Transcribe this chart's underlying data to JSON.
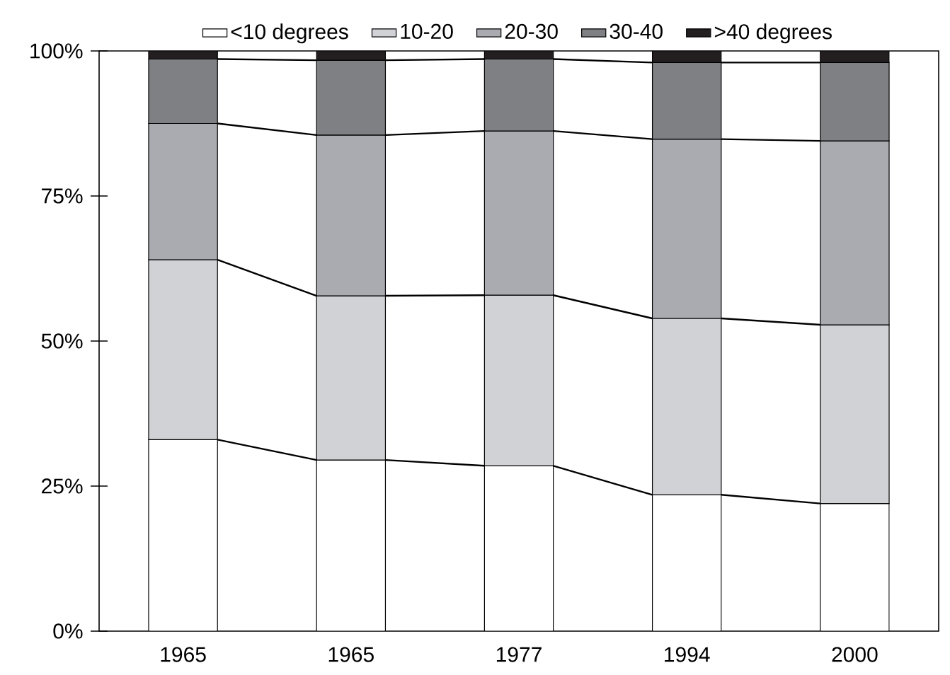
{
  "chart_data": {
    "type": "bar",
    "stacked": true,
    "categories": [
      "1965",
      "1965",
      "1977",
      "1994",
      "2000"
    ],
    "series": [
      {
        "name": "<10 degrees",
        "color": "#ffffff",
        "values": [
          33,
          29.5,
          28.5,
          23.5,
          22
        ]
      },
      {
        "name": "10-20",
        "color": "#d1d2d6",
        "values": [
          31,
          28.3,
          29.4,
          30.4,
          30.8
        ]
      },
      {
        "name": "20-30",
        "color": "#a9abb0",
        "values": [
          23.5,
          27.7,
          28.3,
          30.9,
          31.7
        ]
      },
      {
        "name": "30-40",
        "color": "#7f8084",
        "values": [
          11.1,
          12.9,
          12.4,
          13.2,
          13.5
        ]
      },
      {
        "name": ">40 degrees",
        "color": "#231f20",
        "values": [
          1.4,
          1.6,
          1.4,
          2.0,
          2.0
        ]
      }
    ],
    "ylim": [
      0,
      100
    ],
    "yticks": [
      {
        "value": 0,
        "label": "0%"
      },
      {
        "value": 25,
        "label": "25%"
      },
      {
        "value": 50,
        "label": "50%"
      },
      {
        "value": 75,
        "label": "75%"
      },
      {
        "value": 100,
        "label": "100%"
      }
    ],
    "legend": "top"
  }
}
